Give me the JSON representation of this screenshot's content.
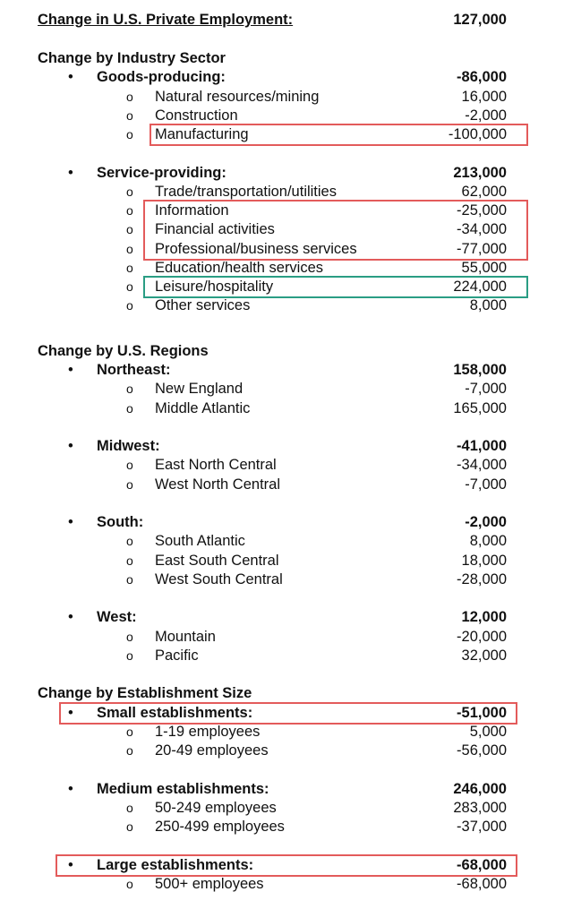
{
  "header": {
    "title": "Change in U.S. Private Employment:",
    "value": "127,000"
  },
  "sections": [
    {
      "title": "Change by Industry Sector",
      "groups": [
        {
          "name": "Goods-producing:",
          "value": "-86,000",
          "items": [
            {
              "name": "Natural resources/mining",
              "value": "16,000"
            },
            {
              "name": "Construction",
              "value": "-2,000"
            },
            {
              "name": "Manufacturing",
              "value": "-100,000"
            }
          ]
        },
        {
          "name": "Service-providing:",
          "value": "213,000",
          "items": [
            {
              "name": "Trade/transportation/utilities",
              "value": "62,000"
            },
            {
              "name": "Information",
              "value": "-25,000"
            },
            {
              "name": "Financial activities",
              "value": "-34,000"
            },
            {
              "name": "Professional/business services",
              "value": "-77,000"
            },
            {
              "name": "Education/health services",
              "value": "55,000"
            },
            {
              "name": "Leisure/hospitality",
              "value": "224,000"
            },
            {
              "name": "Other services",
              "value": "8,000"
            }
          ]
        }
      ]
    },
    {
      "title": "Change by U.S. Regions",
      "groups": [
        {
          "name": "Northeast:",
          "value": "158,000",
          "items": [
            {
              "name": "New England",
              "value": "-7,000"
            },
            {
              "name": "Middle Atlantic",
              "value": "165,000"
            }
          ]
        },
        {
          "name": "Midwest:",
          "value": "-41,000",
          "items": [
            {
              "name": "East North Central",
              "value": "-34,000"
            },
            {
              "name": "West North Central",
              "value": "-7,000"
            }
          ]
        },
        {
          "name": "South:",
          "value": "-2,000",
          "items": [
            {
              "name": "South Atlantic",
              "value": "8,000"
            },
            {
              "name": "East South Central",
              "value": "18,000"
            },
            {
              "name": "West South Central",
              "value": "-28,000"
            }
          ]
        },
        {
          "name": "West:",
          "value": "12,000",
          "items": [
            {
              "name": "Mountain",
              "value": "-20,000"
            },
            {
              "name": "Pacific",
              "value": "32,000"
            }
          ]
        }
      ]
    },
    {
      "title": "Change by Establishment Size",
      "groups": [
        {
          "name": "Small establishments:",
          "value": "-51,000",
          "items": [
            {
              "name": "1-19 employees",
              "value": "5,000"
            },
            {
              "name": "20-49 employees",
              "value": "-56,000"
            }
          ]
        },
        {
          "name": "Medium establishments:",
          "value": "246,000",
          "items": [
            {
              "name": "50-249 employees",
              "value": "283,000"
            },
            {
              "name": "250-499 employees",
              "value": "-37,000"
            }
          ]
        },
        {
          "name": "Large establishments:",
          "value": "-68,000",
          "items": [
            {
              "name": "500+ employees",
              "value": "-68,000"
            }
          ]
        }
      ]
    }
  ]
}
